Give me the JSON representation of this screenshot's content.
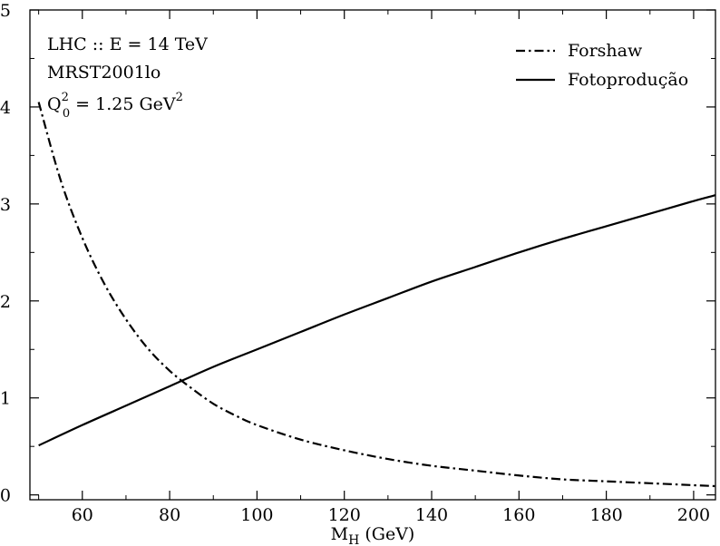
{
  "chart_data": {
    "type": "line",
    "xlabel": {
      "main": "M",
      "sub": "H",
      "rest": " (GeV)"
    },
    "xlim": [
      48,
      205
    ],
    "ylim": [
      -0.005,
      0.5
    ],
    "x_ticks": [
      {
        "value": 60,
        "label": "60"
      },
      {
        "value": 80,
        "label": "80"
      },
      {
        "value": 100,
        "label": "100"
      },
      {
        "value": 120,
        "label": "120"
      },
      {
        "value": 140,
        "label": "140"
      },
      {
        "value": 160,
        "label": "160"
      },
      {
        "value": 180,
        "label": "180"
      },
      {
        "value": 200,
        "label": "200"
      }
    ],
    "y_ticks": [
      {
        "value": 0,
        "label": "0"
      },
      {
        "value": 0.1,
        "label": ",1"
      },
      {
        "value": 0.2,
        "label": ",2"
      },
      {
        "value": 0.3,
        "label": ",3"
      },
      {
        "value": 0.4,
        "label": ",4"
      },
      {
        "value": 0.5,
        "label": ",5"
      }
    ],
    "annotations": {
      "line1": "LHC :: E = 14 TeV",
      "line2": "MRST2001lo",
      "line3": {
        "q": "Q",
        "q_sup": "2",
        "q_sub": "0",
        "value": " = 1.25 GeV",
        "unit_sup": "2"
      }
    },
    "legend_position": "top-right",
    "grid": false,
    "series": [
      {
        "name": "Forshaw",
        "style": "dash-dot",
        "color": "#000000",
        "x": [
          50,
          55,
          60,
          65,
          70,
          75,
          80,
          85,
          90,
          95,
          100,
          110,
          120,
          130,
          140,
          150,
          160,
          170,
          180,
          190,
          200,
          205
        ],
        "y": [
          0.405,
          0.325,
          0.265,
          0.218,
          0.181,
          0.151,
          0.128,
          0.11,
          0.094,
          0.082,
          0.072,
          0.057,
          0.046,
          0.037,
          0.03,
          0.025,
          0.02,
          0.016,
          0.014,
          0.012,
          0.01,
          0.009
        ]
      },
      {
        "name": "Fotoprodução",
        "style": "solid",
        "color": "#000000",
        "x": [
          50,
          60,
          70,
          80,
          90,
          100,
          110,
          120,
          130,
          140,
          150,
          160,
          170,
          180,
          190,
          200,
          205
        ],
        "y": [
          0.051,
          0.072,
          0.092,
          0.112,
          0.132,
          0.15,
          0.168,
          0.186,
          0.203,
          0.22,
          0.235,
          0.25,
          0.264,
          0.277,
          0.29,
          0.303,
          0.309
        ]
      }
    ]
  }
}
